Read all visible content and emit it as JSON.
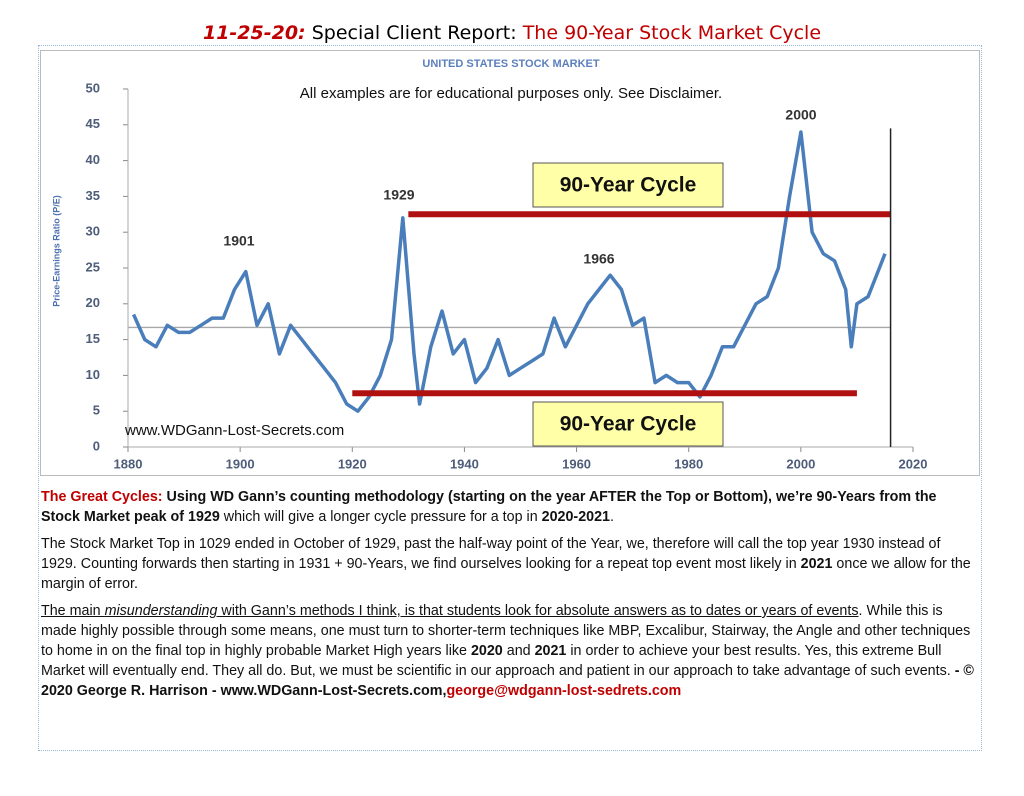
{
  "header": {
    "runs": [
      "11-25-20:",
      " Special Client Report: ",
      "The 90-Year Stock Market Cycle"
    ]
  },
  "chart_data": {
    "type": "line",
    "title": "UNITED STATES STOCK MARKET",
    "y_label": "Price-Earnings Ratio (P/E)",
    "annotations": [
      "All examples are for educational purposes only. See Disclaimer.",
      "1901",
      "1929",
      "1966",
      "2000",
      "90-Year Cycle",
      "90-Year Cycle",
      "www.WDGann-Lost-Secrets.com"
    ],
    "x": [
      1881,
      1883,
      1885,
      1887,
      1889,
      1891,
      1893,
      1895,
      1897,
      1899,
      1901,
      1903,
      1905,
      1907,
      1909,
      1911,
      1913,
      1915,
      1917,
      1919,
      1921,
      1923,
      1925,
      1927,
      1929,
      1931,
      1932,
      1934,
      1936,
      1938,
      1940,
      1942,
      1944,
      1946,
      1948,
      1950,
      1952,
      1954,
      1956,
      1958,
      1960,
      1962,
      1964,
      1966,
      1968,
      1970,
      1972,
      1974,
      1976,
      1978,
      1980,
      1982,
      1984,
      1986,
      1988,
      1990,
      1992,
      1994,
      1996,
      1998,
      2000,
      2002,
      2004,
      2006,
      2008,
      2009,
      2010,
      2012,
      2014,
      2015
    ],
    "series": [
      {
        "name": "P/E",
        "color": "#4a7ebb",
        "values": [
          18.5,
          15,
          14,
          17,
          16,
          16,
          17,
          18,
          18,
          22,
          24.5,
          17,
          20,
          13,
          17,
          15,
          13,
          11,
          9,
          6,
          5,
          7,
          10,
          15,
          32,
          13,
          6,
          14,
          19,
          13,
          15,
          9,
          11,
          15,
          10,
          11,
          12,
          13,
          18,
          14,
          17,
          20,
          22,
          24,
          22,
          17,
          18,
          9,
          10,
          9,
          9,
          7,
          10,
          14,
          14,
          17,
          20,
          21,
          25,
          35,
          44,
          30,
          27,
          26,
          22,
          14,
          20,
          21,
          25,
          27
        ]
      }
    ],
    "reference_lines": [
      {
        "y": 32.5,
        "x": [
          1930,
          2016
        ],
        "color": "#b01010"
      },
      {
        "y": 7.5,
        "x": [
          1920,
          2010
        ],
        "color": "#b01010"
      },
      {
        "y": 16.7,
        "x": [
          1880,
          2016
        ],
        "color": "#a8a8a8"
      }
    ],
    "vline": {
      "x": 2016,
      "y": [
        0,
        44.5
      ]
    },
    "xlim": [
      1880,
      2020
    ],
    "xticks": [
      1880,
      1900,
      1920,
      1940,
      1960,
      1980,
      2000,
      2020
    ],
    "ylim": [
      0,
      50
    ],
    "yticks": [
      0,
      5,
      10,
      15,
      20,
      25,
      30,
      35,
      40,
      45,
      50
    ]
  },
  "paragraphs": [
    [
      "The Great Cycles: ",
      "Using WD Gann’s counting methodology (starting on the year AFTER the Top or Bottom), we’re 90-Years from the Stock Market peak of 1929",
      " which will give a longer cycle pressure for a top in ",
      "2020-2021",
      "."
    ],
    [
      "The Stock Market Top in 1029 ended in October of 1929, past the half-way point of the Year, we, therefore will call the top year 1930 instead of 1929. Counting forwards then starting in 1931 + 90-Years, we find ourselves looking for a repeat top event most likely in ",
      "2021",
      " once we allow for the margin of error."
    ],
    [
      "The main ",
      "misunderstanding",
      " with Gann’s methods I think, is that students look for absolute answers as to dates or years of events",
      ". While this is made highly possible through some means, one must turn to shorter-term techniques like MBP, Excalibur, Stairway, the Angle and other techniques to home in on the final top in highly probable Market High years like ",
      "2020",
      " and ",
      "2021",
      " in order to achieve your best results. Yes, this extreme Bull Market will eventually end. They all do. But, we must be scientific in our approach and patient in our approach to take advantage of such events. ",
      "- © 2020 George R. Harrison  - www.WDGann-Lost-Secrets.com,",
      "george@wdgann-lost-sedrets.com"
    ]
  ]
}
